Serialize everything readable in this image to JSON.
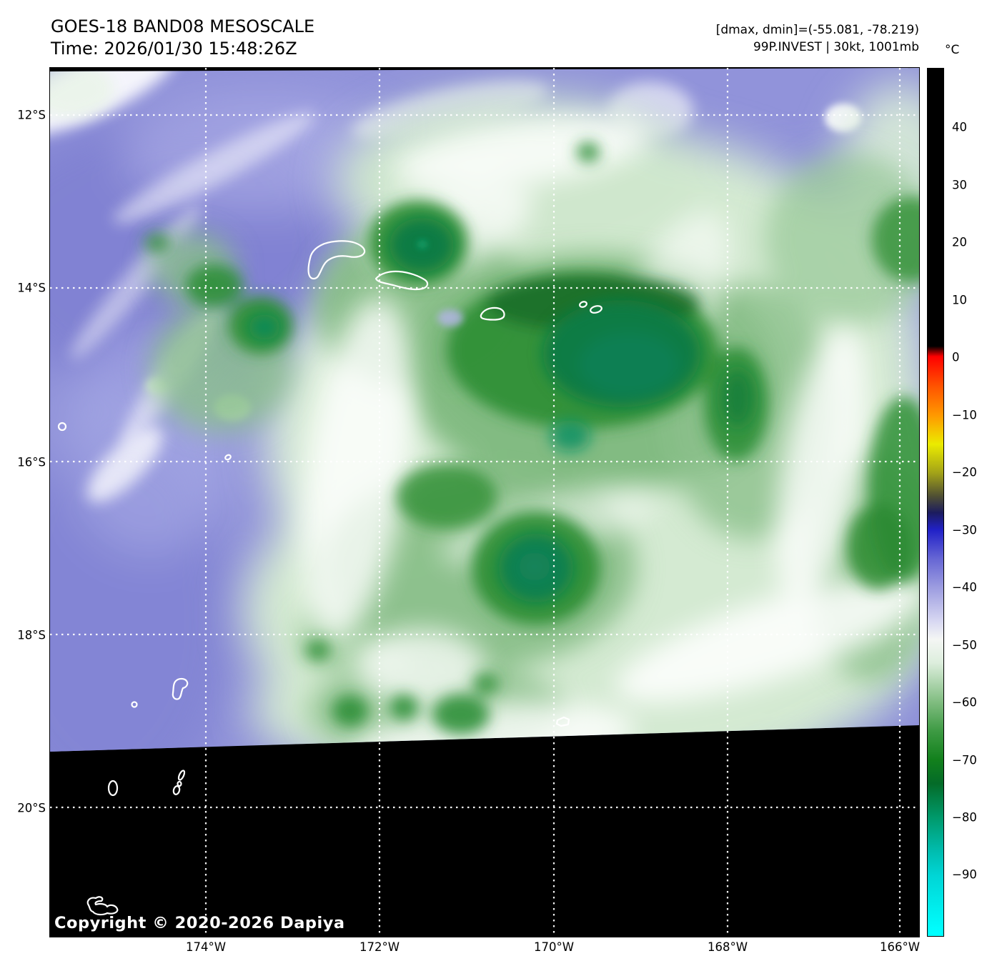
{
  "header": {
    "title_line1": "GOES-18 BAND08 MESOSCALE",
    "title_line2": "Time: 2026/01/30 15:48:26Z",
    "meta_line1": "[dmax, dmin]=(-55.081, -78.219)",
    "meta_line2": "99P.INVEST | 30kt, 1001mb"
  },
  "colorbar": {
    "unit": "°C",
    "tick_values": [
      40,
      30,
      20,
      10,
      0,
      -10,
      -20,
      -30,
      -40,
      -50,
      -60,
      -70,
      -80,
      -90
    ],
    "gradient_stops": [
      {
        "pct": 0.0,
        "color": "#000000"
      },
      {
        "pct": 32.0,
        "color": "#000000"
      },
      {
        "pct": 33.2,
        "color": "#ff0000"
      },
      {
        "pct": 36.7,
        "color": "#ff5500"
      },
      {
        "pct": 40.0,
        "color": "#ff9900"
      },
      {
        "pct": 43.3,
        "color": "#ebeb00"
      },
      {
        "pct": 46.6,
        "color": "#a3a318"
      },
      {
        "pct": 49.3,
        "color": "#4f4f33"
      },
      {
        "pct": 51.2,
        "color": "#1c1c5e"
      },
      {
        "pct": 53.2,
        "color": "#2121c8"
      },
      {
        "pct": 56.5,
        "color": "#6666d4"
      },
      {
        "pct": 59.8,
        "color": "#9c9ce0"
      },
      {
        "pct": 63.8,
        "color": "#d9d9f2"
      },
      {
        "pct": 65.8,
        "color": "#f4f6f4"
      },
      {
        "pct": 68.5,
        "color": "#ddeedd"
      },
      {
        "pct": 73.1,
        "color": "#7fbc7f"
      },
      {
        "pct": 76.4,
        "color": "#3d9a43"
      },
      {
        "pct": 79.7,
        "color": "#12801c"
      },
      {
        "pct": 82.4,
        "color": "#046b28"
      },
      {
        "pct": 86.3,
        "color": "#00996a"
      },
      {
        "pct": 90.3,
        "color": "#00bdb0"
      },
      {
        "pct": 93.0,
        "color": "#00d5d5"
      },
      {
        "pct": 99.6,
        "color": "#00ffff"
      },
      {
        "pct": 100.0,
        "color": "#00ffff"
      }
    ]
  },
  "map": {
    "lat_ticks": [
      "12°S",
      "14°S",
      "16°S",
      "18°S",
      "20°S"
    ],
    "lon_ticks": [
      "174°W",
      "172°W",
      "170°W",
      "168°W",
      "166°W"
    ],
    "copyright": "Copyright © 2020-2026 Dapiya"
  },
  "imagery_palette": {
    "warm_background_purple": "#9193da",
    "cold_cloud_light_green": "#d4ead2",
    "cold_cloud_mid_green": "#85bd85",
    "cold_cloud_dark_green": "#2f8f36",
    "coldest_core_teal": "#0c7c44",
    "cloud_edge_white": "#ffffff",
    "no_data_black": "#000000",
    "coastline_white": "#ffffff"
  }
}
